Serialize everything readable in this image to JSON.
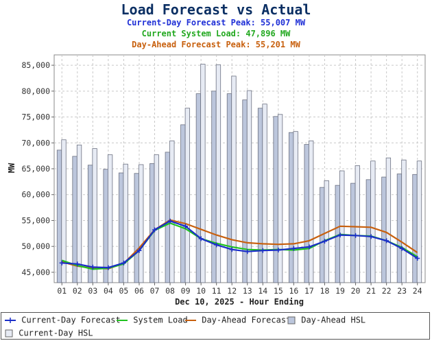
{
  "header": {
    "title": "Load Forecast vs Actual",
    "subtitle_forecast": "Current-Day Forecast Peak:  55,007 MW",
    "subtitle_load": "Current System Load:  47,896 MW",
    "subtitle_dayahead": "Day-Ahead Forecast Peak:  55,201 MW"
  },
  "chart_data": {
    "type": "bar",
    "title": "Load Forecast vs Actual",
    "xlabel": "Dec 10, 2025 - Hour Ending",
    "ylabel": "MW",
    "ylim": [
      43000,
      87000
    ],
    "yticks": [
      45000,
      50000,
      55000,
      60000,
      65000,
      70000,
      75000,
      80000,
      85000
    ],
    "ytick_labels": [
      "45,000",
      "50,000",
      "55,000",
      "60,000",
      "65,000",
      "70,000",
      "75,000",
      "80,000",
      "85,000"
    ],
    "grid": true,
    "legend_placement": "bottom",
    "categories": [
      "01",
      "02",
      "03",
      "04",
      "05",
      "06",
      "07",
      "08",
      "09",
      "10",
      "11",
      "12",
      "13",
      "14",
      "15",
      "16",
      "17",
      "18",
      "19",
      "20",
      "21",
      "22",
      "23",
      "24"
    ],
    "series": [
      {
        "name": "Current-Day Forecast",
        "kind": "line",
        "color": "#1a2ec8",
        "values": [
          46800,
          46600,
          46000,
          45900,
          46800,
          49200,
          53200,
          54900,
          53900,
          51500,
          50300,
          49400,
          49000,
          49200,
          49300,
          49600,
          49900,
          51000,
          52200,
          52100,
          51900,
          51100,
          49600,
          47700
        ]
      },
      {
        "name": "System Load",
        "kind": "line",
        "color": "#1fc21f",
        "values": [
          47300,
          46300,
          45600,
          45800,
          46600,
          49200,
          53100,
          54500,
          53400,
          51500,
          50600,
          49900,
          49400,
          49300,
          49400,
          49300,
          49600,
          51100,
          52300,
          52100,
          52000,
          51100,
          49800,
          48000
        ]
      },
      {
        "name": "Day-Ahead Forecast",
        "kind": "line",
        "color": "#c8600e",
        "values": [
          47000,
          46200,
          45800,
          45700,
          46700,
          49700,
          53200,
          55100,
          54400,
          53300,
          52200,
          51300,
          50700,
          50500,
          50400,
          50500,
          51100,
          52500,
          53900,
          53800,
          53700,
          52700,
          50800,
          48800
        ]
      },
      {
        "name": "Day-Ahead HSL",
        "kind": "bar",
        "color": "#bcc6dc",
        "values": [
          68600,
          67400,
          65700,
          64900,
          64200,
          64100,
          66000,
          68200,
          73500,
          79500,
          80000,
          79500,
          78300,
          76700,
          75100,
          72000,
          69700,
          61400,
          61800,
          62200,
          62900,
          63400,
          64000,
          63900
        ]
      },
      {
        "name": "Current-Day HSL",
        "kind": "bar",
        "color": "#e7ebf4",
        "values": [
          70600,
          69600,
          68900,
          67700,
          65900,
          65800,
          67700,
          70400,
          76700,
          85200,
          85100,
          82900,
          80100,
          77500,
          75500,
          72200,
          70400,
          62700,
          64600,
          65600,
          66500,
          67100,
          66700,
          66500
        ]
      }
    ]
  }
}
